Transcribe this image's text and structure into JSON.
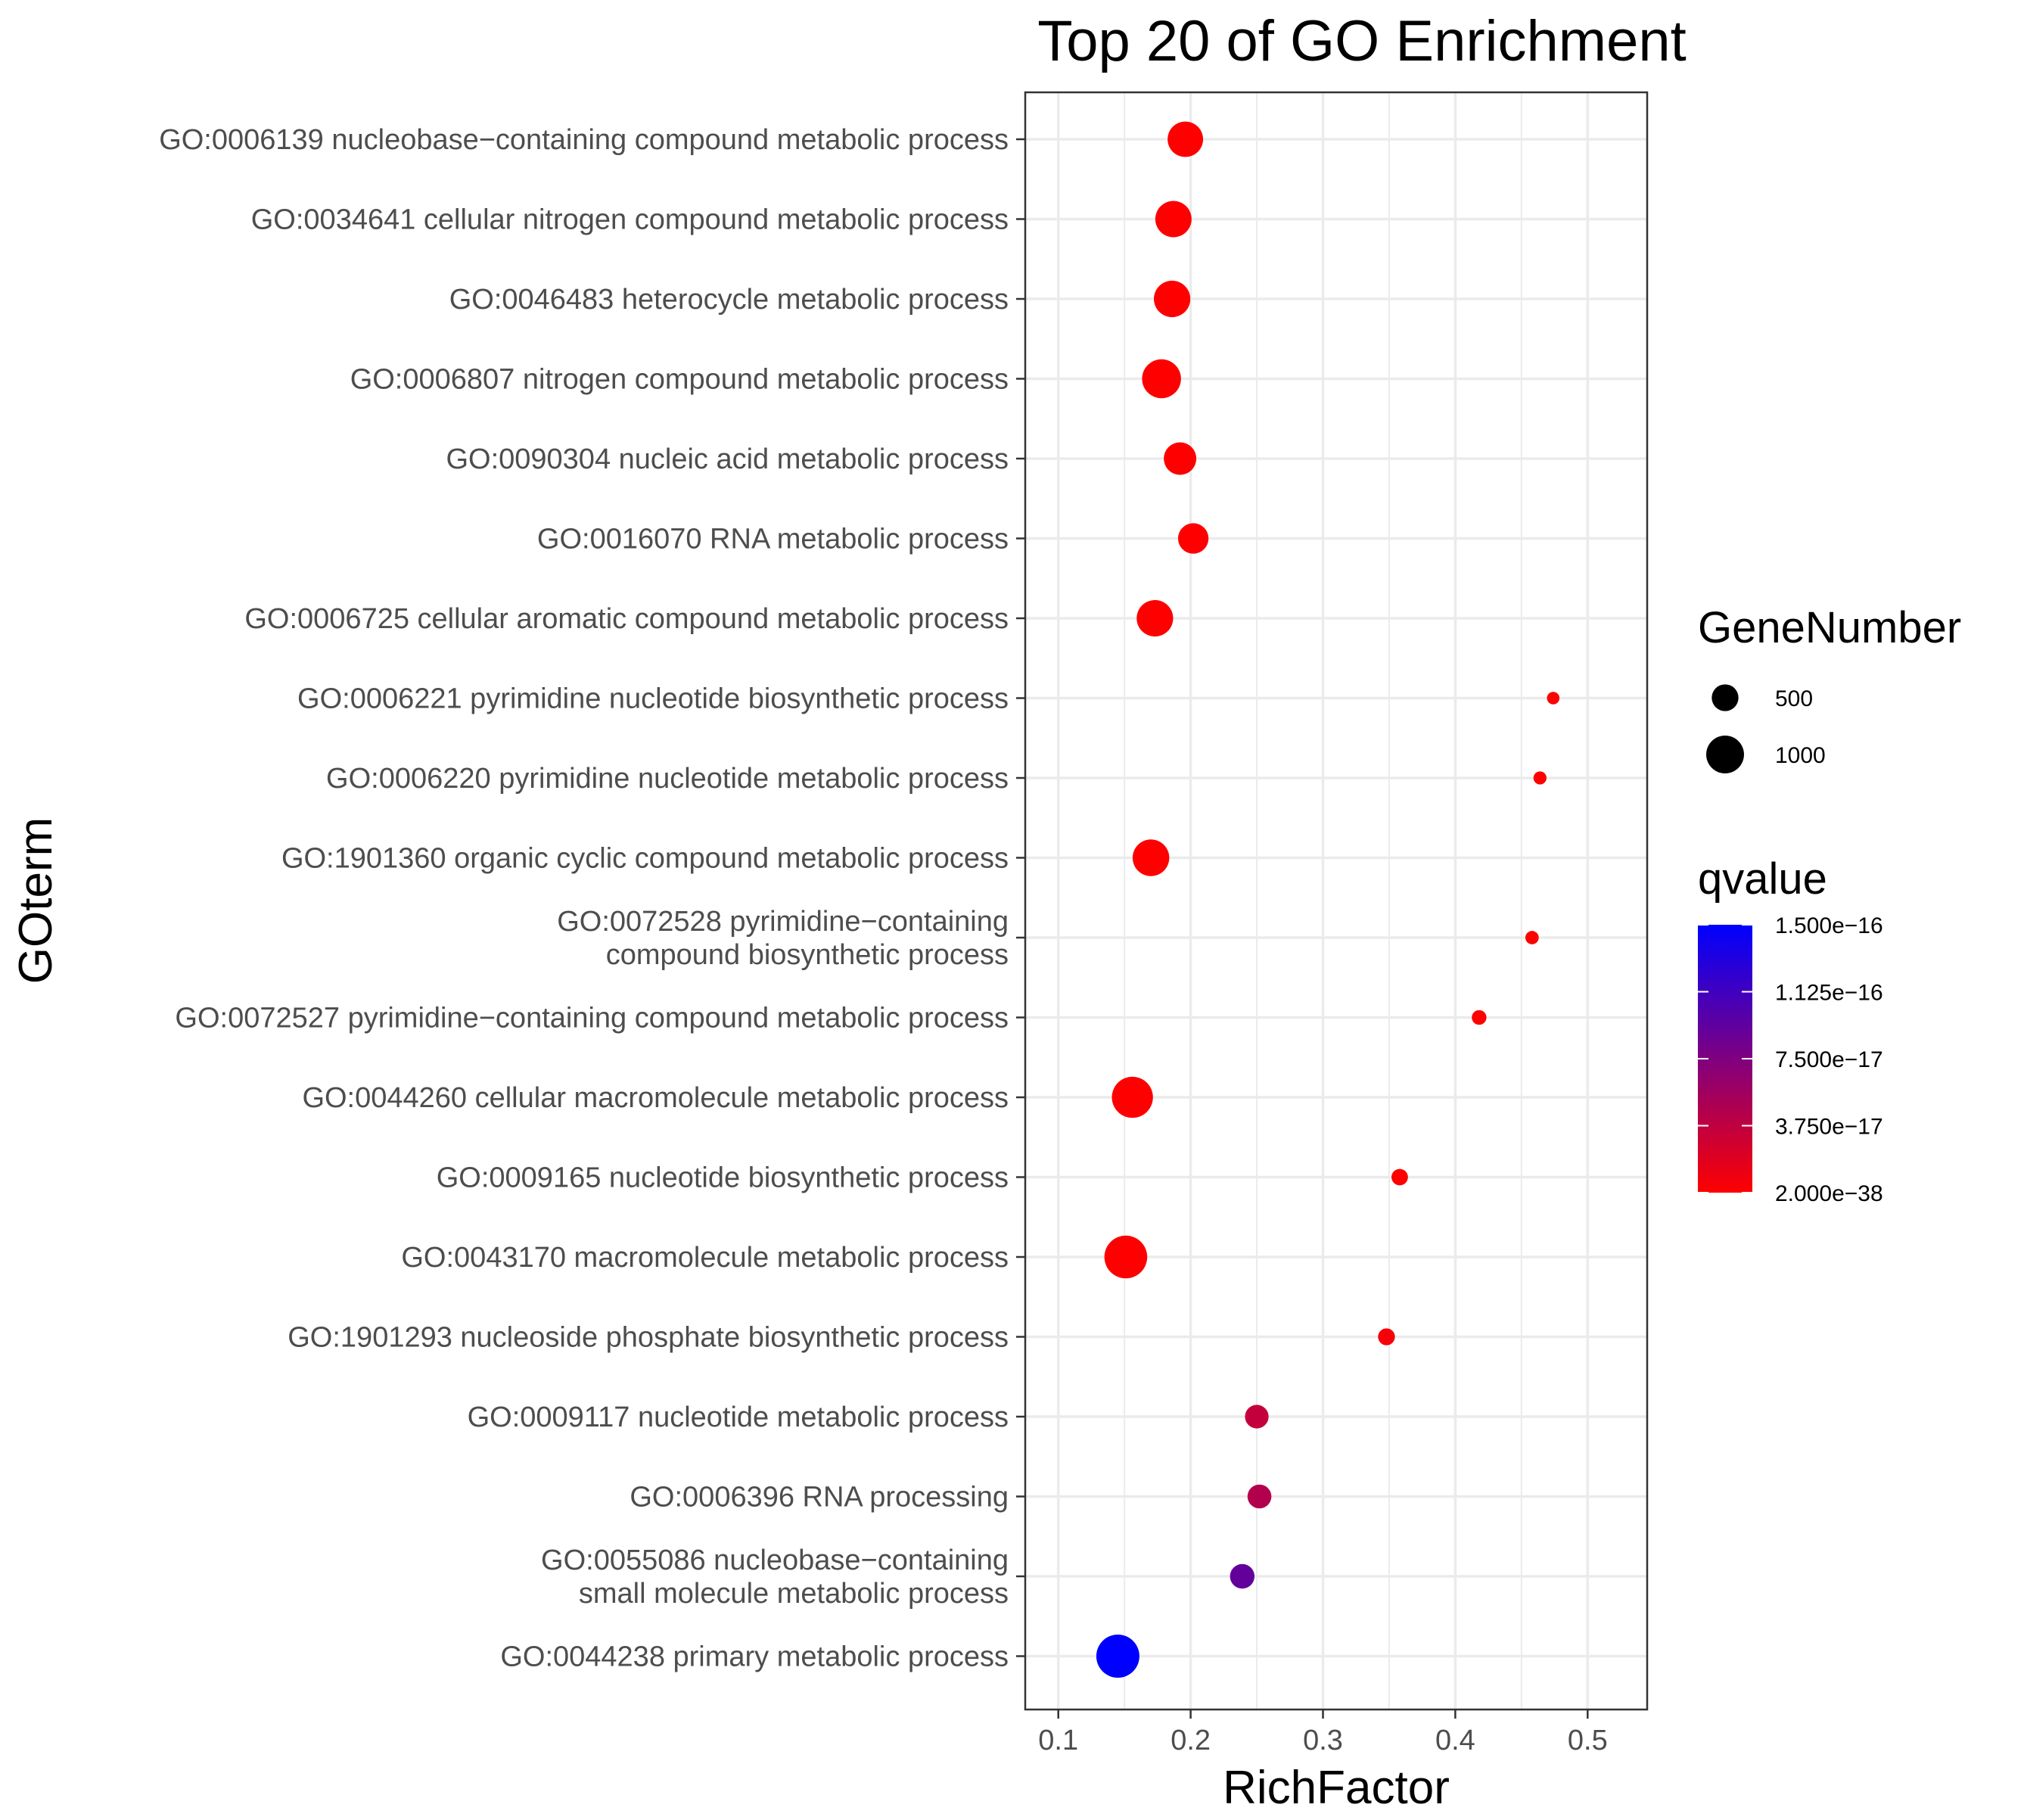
{
  "chart_data": {
    "type": "scatter",
    "title": "Top 20 of GO Enrichment",
    "xlabel": "RichFactor",
    "ylabel": "GOterm",
    "xlim": [
      0.075,
      0.545
    ],
    "xticks": [
      0.1,
      0.2,
      0.3,
      0.4,
      0.5
    ],
    "xtick_labels": [
      "0.1",
      "0.2",
      "0.3",
      "0.4",
      "0.5"
    ],
    "grid": true,
    "size_legend": {
      "title": "GeneNumber",
      "entries": [
        {
          "label": "500",
          "value": 500
        },
        {
          "label": "1000",
          "value": 1000
        }
      ]
    },
    "color_legend": {
      "title": "qvalue",
      "low_color": "#ff0000",
      "high_color": "#0000ff",
      "labels": [
        "1.500e−16",
        "1.125e−16",
        "7.500e−17",
        "3.750e−17",
        "2.000e−38"
      ],
      "ticks": [
        1.5e-16,
        1.125e-16,
        7.5e-17,
        3.75e-17,
        2e-38
      ],
      "min": 2e-38,
      "max": 1.5e-16
    },
    "points": [
      {
        "term": [
          "GO:0006139 nucleobase−containing compound metabolic process"
        ],
        "x": 0.196,
        "gene_number": 880,
        "qvalue": 1e-30
      },
      {
        "term": [
          "GO:0034641 cellular nitrogen compound metabolic process"
        ],
        "x": 0.187,
        "gene_number": 920,
        "qvalue": 1e-30
      },
      {
        "term": [
          "GO:0046483 heterocycle metabolic process"
        ],
        "x": 0.186,
        "gene_number": 930,
        "qvalue": 1e-30
      },
      {
        "term": [
          "GO:0006807 nitrogen compound metabolic process"
        ],
        "x": 0.178,
        "gene_number": 1060,
        "qvalue": 1e-30
      },
      {
        "term": [
          "GO:0090304 nucleic acid metabolic process"
        ],
        "x": 0.192,
        "gene_number": 740,
        "qvalue": 1e-30
      },
      {
        "term": [
          "GO:0016070 RNA metabolic process"
        ],
        "x": 0.202,
        "gene_number": 650,
        "qvalue": 2e-20
      },
      {
        "term": [
          "GO:0006725 cellular aromatic compound metabolic process"
        ],
        "x": 0.173,
        "gene_number": 930,
        "qvalue": 1e-30
      },
      {
        "term": [
          "GO:0006221 pyrimidine nucleotide biosynthetic process"
        ],
        "x": 0.474,
        "gene_number": 110,
        "qvalue": 1e-30
      },
      {
        "term": [
          "GO:0006220 pyrimidine nucleotide metabolic process"
        ],
        "x": 0.464,
        "gene_number": 120,
        "qvalue": 1e-30
      },
      {
        "term": [
          "GO:1901360 organic cyclic compound metabolic process"
        ],
        "x": 0.17,
        "gene_number": 940,
        "qvalue": 1e-30
      },
      {
        "term": [
          "GO:0072528 pyrimidine−containing",
          "compound biosynthetic process"
        ],
        "x": 0.458,
        "gene_number": 125,
        "qvalue": 1e-30
      },
      {
        "term": [
          "GO:0072527 pyrimidine−containing compound metabolic process"
        ],
        "x": 0.418,
        "gene_number": 150,
        "qvalue": 1e-30
      },
      {
        "term": [
          "GO:0044260 cellular macromolecule metabolic process"
        ],
        "x": 0.156,
        "gene_number": 1180,
        "qvalue": 1e-30
      },
      {
        "term": [
          "GO:0009165 nucleotide biosynthetic process"
        ],
        "x": 0.358,
        "gene_number": 190,
        "qvalue": 2e-19
      },
      {
        "term": [
          "GO:0043170 macromolecule metabolic process"
        ],
        "x": 0.151,
        "gene_number": 1280,
        "qvalue": 1e-30
      },
      {
        "term": [
          "GO:1901293 nucleoside phosphate biosynthetic process"
        ],
        "x": 0.348,
        "gene_number": 200,
        "qvalue": 5e-18
      },
      {
        "term": [
          "GO:0009117 nucleotide metabolic process"
        ],
        "x": 0.25,
        "gene_number": 390,
        "qvalue": 3.5e-17
      },
      {
        "term": [
          "GO:0006396 RNA processing"
        ],
        "x": 0.252,
        "gene_number": 400,
        "qvalue": 4.5e-17
      },
      {
        "term": [
          "GO:0055086 nucleobase−containing",
          "small molecule metabolic process"
        ],
        "x": 0.239,
        "gene_number": 420,
        "qvalue": 9.2e-17
      },
      {
        "term": [
          "GO:0044238 primary metabolic process"
        ],
        "x": 0.145,
        "gene_number": 1300,
        "qvalue": 1.5e-16
      }
    ]
  }
}
